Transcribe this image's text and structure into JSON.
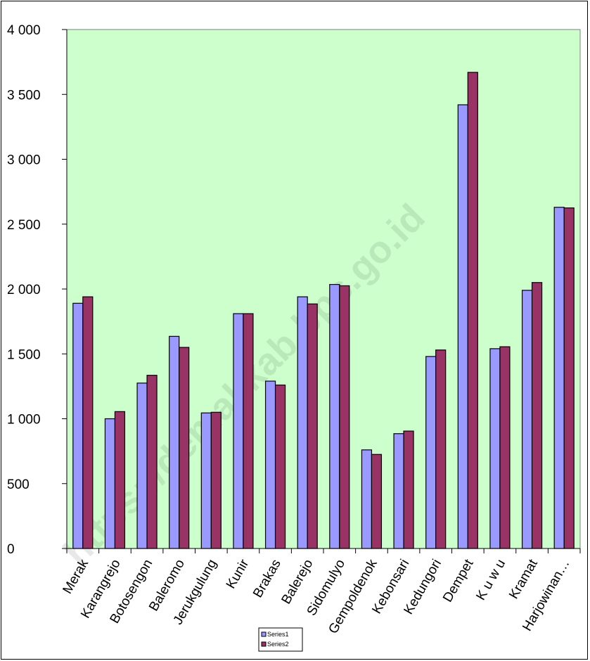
{
  "chart_data": {
    "type": "bar",
    "title": "",
    "xlabel": "",
    "ylabel": "",
    "ylim": [
      0,
      4000
    ],
    "yticks": [
      0,
      500,
      1000,
      1500,
      2000,
      2500,
      3000,
      3500,
      4000
    ],
    "ytick_labels": [
      "0",
      "500",
      "1 000",
      "1 500",
      "2 000",
      "2 500",
      "3 000",
      "3 500",
      "4 000"
    ],
    "grid": false,
    "legend_position": "bottom",
    "plot_background": "#ccffcc",
    "categories": [
      "Merak",
      "Karangrejo",
      "Botosengon",
      "Baleromo",
      "Jerukgulung",
      "Kunir",
      "Brakas",
      "Balerejo",
      "Sidomulyo",
      "Gempoldenok",
      "Kebonsari",
      "Kedungori",
      "Dempet",
      "K u w u",
      "Kramat",
      "Harjowinan…"
    ],
    "series": [
      {
        "name": "Series1",
        "color": "#9999ff",
        "values": [
          1890,
          1000,
          1275,
          1635,
          1045,
          1810,
          1290,
          1940,
          2035,
          760,
          885,
          1480,
          3420,
          1540,
          1990,
          2630
        ]
      },
      {
        "name": "Series2",
        "color": "#993366",
        "values": [
          1940,
          1055,
          1335,
          1550,
          1050,
          1810,
          1260,
          1885,
          2025,
          725,
          905,
          1530,
          3670,
          1555,
          2050,
          2625
        ]
      }
    ]
  },
  "watermark": "https://demakkab.bps.go.id"
}
